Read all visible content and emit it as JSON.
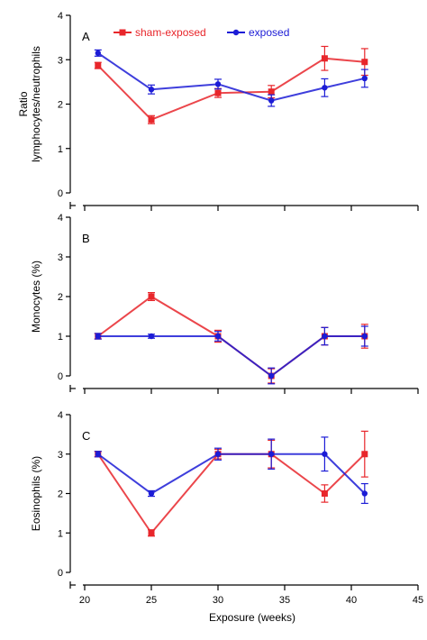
{
  "chart_data": [
    {
      "type": "line",
      "panel_label": "A",
      "ylabel_lines": [
        "Ratio",
        "lymphocytes/neutrophils"
      ],
      "ylim": [
        0,
        4
      ],
      "yticks": [
        0,
        1,
        2,
        3,
        4
      ],
      "series": [
        {
          "name": "sham-exposed",
          "color": "#e8262b",
          "marker": "square",
          "x": [
            21,
            25,
            30,
            34,
            38,
            41
          ],
          "values": [
            2.87,
            1.65,
            2.25,
            2.28,
            3.03,
            2.95
          ],
          "error": [
            0.07,
            0.09,
            0.1,
            0.14,
            0.27,
            0.3
          ]
        },
        {
          "name": "exposed",
          "color": "#1c1cd6",
          "marker": "circle",
          "x": [
            21,
            25,
            30,
            34,
            38,
            41
          ],
          "values": [
            3.15,
            2.33,
            2.45,
            2.08,
            2.37,
            2.58
          ],
          "error": [
            0.07,
            0.1,
            0.11,
            0.13,
            0.2,
            0.2
          ]
        }
      ]
    },
    {
      "type": "line",
      "panel_label": "B",
      "ylabel_lines": [
        "Monocytes (%)"
      ],
      "ylim": [
        0,
        4
      ],
      "yticks": [
        0,
        1,
        2,
        3,
        4
      ],
      "series": [
        {
          "name": "sham-exposed",
          "color": "#e8262b",
          "marker": "square",
          "x": [
            21,
            25,
            30,
            34,
            38,
            41
          ],
          "values": [
            1.0,
            2.0,
            1.0,
            0.0,
            1.0,
            1.0
          ],
          "error": [
            0.07,
            0.1,
            0.15,
            0.18,
            0.22,
            0.3
          ]
        },
        {
          "name": "exposed",
          "color": "#1c1cd6",
          "marker": "circle",
          "x": [
            21,
            25,
            30,
            34,
            38,
            41
          ],
          "values": [
            1.0,
            1.0,
            1.0,
            0.0,
            1.0,
            1.0
          ],
          "error": [
            0.07,
            0.05,
            0.12,
            0.2,
            0.22,
            0.25
          ]
        }
      ]
    },
    {
      "type": "line",
      "panel_label": "C",
      "ylabel_lines": [
        "Eosinophils (%)"
      ],
      "ylim": [
        0,
        4
      ],
      "yticks": [
        0,
        1,
        2,
        3,
        4
      ],
      "xlabel": "Exposure (weeks)",
      "xlim": [
        20,
        45
      ],
      "xticks": [
        20,
        25,
        30,
        35,
        40,
        45
      ],
      "series": [
        {
          "name": "sham-exposed",
          "color": "#e8262b",
          "marker": "square",
          "x": [
            21,
            25,
            30,
            34,
            38,
            41
          ],
          "values": [
            3.0,
            1.0,
            3.0,
            3.0,
            2.0,
            3.0
          ],
          "error": [
            0.07,
            0.08,
            0.12,
            0.35,
            0.22,
            0.58
          ]
        },
        {
          "name": "exposed",
          "color": "#1c1cd6",
          "marker": "circle",
          "x": [
            21,
            25,
            30,
            34,
            38,
            41
          ],
          "values": [
            3.0,
            2.0,
            3.0,
            3.0,
            3.0,
            2.0
          ],
          "error": [
            0.07,
            0.07,
            0.15,
            0.38,
            0.43,
            0.25
          ]
        }
      ]
    }
  ],
  "legend": {
    "placement": "top-left",
    "items": [
      "sham-exposed",
      "exposed"
    ]
  }
}
